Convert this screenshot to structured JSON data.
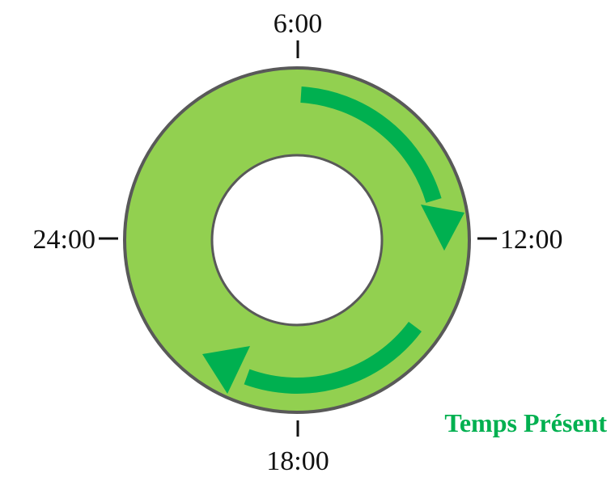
{
  "labels": {
    "top": "6:00",
    "right": "12:00",
    "bottom": "18:00",
    "left": "24:00",
    "caption": "Temps Présent"
  },
  "colors": {
    "ring_fill": "#92d050",
    "ring_stroke": "#595959",
    "arrow": "#00b050",
    "caption": "#00b050",
    "text": "#111111"
  },
  "icons": {
    "upper_arrow": "clockwise-arrow-icon",
    "lower_arrow": "clockwise-arrow-icon"
  }
}
